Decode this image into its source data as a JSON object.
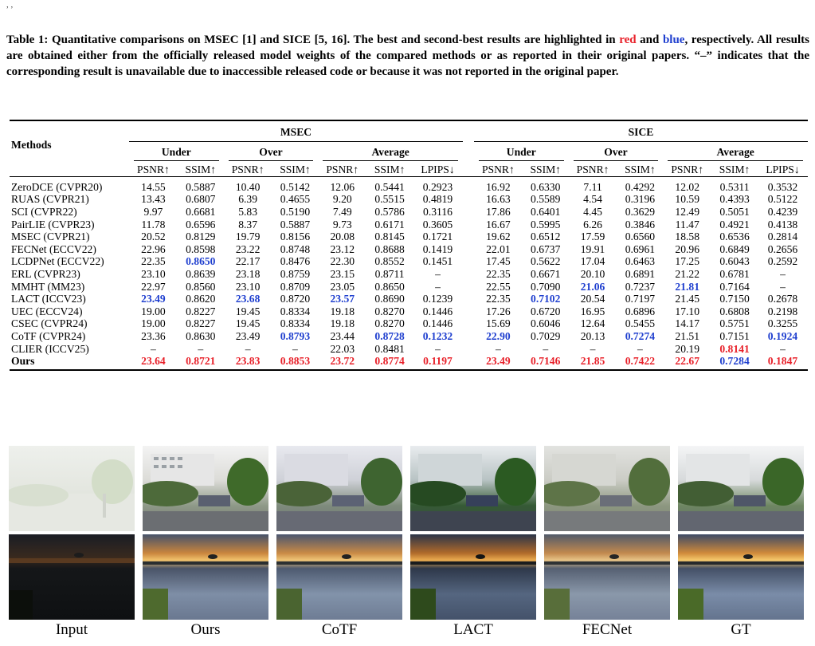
{
  "header_mark": ", ,",
  "caption": {
    "part1": "Table 1: Quantitative comparisons on MSEC [1] and SICE [5, 16]. The best and second-best results are highlighted in ",
    "red": "red",
    "part2": " and ",
    "blue": "blue",
    "part3": ", respectively. All results are obtained either from the officially released model weights of the compared methods or as reported in their original papers. “–” indicates that the corresponding result is unavailable due to inaccessible released code or because it was not reported in the original paper."
  },
  "table": {
    "methods_header": "Methods",
    "groups": [
      "MSEC",
      "SICE"
    ],
    "subgroups": [
      "Under",
      "Over",
      "Average",
      "Under",
      "Over",
      "Average"
    ],
    "metrics": [
      "PSNR↑",
      "SSIM↑",
      "PSNR↑",
      "SSIM↑",
      "PSNR↑",
      "SSIM↑",
      "LPIPS↓",
      "PSNR↑",
      "SSIM↑",
      "PSNR↑",
      "SSIM↑",
      "PSNR↑",
      "SSIM↑",
      "LPIPS↓"
    ],
    "rows": [
      {
        "method": "ZeroDCE (CVPR20)",
        "values": [
          "14.55",
          "0.5887",
          "10.40",
          "0.5142",
          "12.06",
          "0.5441",
          "0.2923",
          "16.92",
          "0.6330",
          "7.11",
          "0.4292",
          "12.02",
          "0.5311",
          "0.3532"
        ]
      },
      {
        "method": "RUAS (CVPR21)",
        "values": [
          "13.43",
          "0.6807",
          "6.39",
          "0.4655",
          "9.20",
          "0.5515",
          "0.4819",
          "16.63",
          "0.5589",
          "4.54",
          "0.3196",
          "10.59",
          "0.4393",
          "0.5122"
        ]
      },
      {
        "method": "SCI (CVPR22)",
        "values": [
          "9.97",
          "0.6681",
          "5.83",
          "0.5190",
          "7.49",
          "0.5786",
          "0.3116",
          "17.86",
          "0.6401",
          "4.45",
          "0.3629",
          "12.49",
          "0.5051",
          "0.4239"
        ]
      },
      {
        "method": "PairLIE (CVPR23)",
        "values": [
          "11.78",
          "0.6596",
          "8.37",
          "0.5887",
          "9.73",
          "0.6171",
          "0.3605",
          "16.67",
          "0.5995",
          "6.26",
          "0.3846",
          "11.47",
          "0.4921",
          "0.4138"
        ]
      },
      {
        "method": "MSEC (CVPR21)",
        "values": [
          "20.52",
          "0.8129",
          "19.79",
          "0.8156",
          "20.08",
          "0.8145",
          "0.1721",
          "19.62",
          "0.6512",
          "17.59",
          "0.6560",
          "18.58",
          "0.6536",
          "0.2814"
        ]
      },
      {
        "method": "FECNet (ECCV22)",
        "values": [
          "22.96",
          "0.8598",
          "23.22",
          "0.8748",
          "23.12",
          "0.8688",
          "0.1419",
          "22.01",
          "0.6737",
          "19.91",
          "0.6961",
          "20.96",
          "0.6849",
          "0.2656"
        ]
      },
      {
        "method": "LCDPNet (ECCV22)",
        "values": [
          "22.35",
          "0.8650",
          "22.17",
          "0.8476",
          "22.30",
          "0.8552",
          "0.1451",
          "17.45",
          "0.5622",
          "17.04",
          "0.6463",
          "17.25",
          "0.6043",
          "0.2592"
        ]
      },
      {
        "method": "ERL (CVPR23)",
        "values": [
          "23.10",
          "0.8639",
          "23.18",
          "0.8759",
          "23.15",
          "0.8711",
          "–",
          "22.35",
          "0.6671",
          "20.10",
          "0.6891",
          "21.22",
          "0.6781",
          "–"
        ]
      },
      {
        "method": "MMHT (MM23)",
        "values": [
          "22.97",
          "0.8560",
          "23.10",
          "0.8709",
          "23.05",
          "0.8650",
          "–",
          "22.55",
          "0.7090",
          "21.06",
          "0.7237",
          "21.81",
          "0.7164",
          "–"
        ]
      },
      {
        "method": "LACT (ICCV23)",
        "values": [
          "23.49",
          "0.8620",
          "23.68",
          "0.8720",
          "23.57",
          "0.8690",
          "0.1239",
          "22.35",
          "0.7102",
          "20.54",
          "0.7197",
          "21.45",
          "0.7150",
          "0.2678"
        ]
      },
      {
        "method": "UEC (ECCV24)",
        "values": [
          "19.00",
          "0.8227",
          "19.45",
          "0.8334",
          "19.18",
          "0.8270",
          "0.1446",
          "17.26",
          "0.6720",
          "16.95",
          "0.6896",
          "17.10",
          "0.6808",
          "0.2198"
        ]
      },
      {
        "method": "CSEC (CVPR24)",
        "values": [
          "19.00",
          "0.8227",
          "19.45",
          "0.8334",
          "19.18",
          "0.8270",
          "0.1446",
          "15.69",
          "0.6046",
          "12.64",
          "0.5455",
          "14.17",
          "0.5751",
          "0.3255"
        ]
      },
      {
        "method": "CoTF (CVPR24)",
        "values": [
          "23.36",
          "0.8630",
          "23.49",
          "0.8793",
          "23.44",
          "0.8728",
          "0.1232",
          "22.90",
          "0.7029",
          "20.13",
          "0.7274",
          "21.51",
          "0.7151",
          "0.1924"
        ]
      },
      {
        "method": "CLIER (ICCV25)",
        "values": [
          "–",
          "–",
          "–",
          "–",
          "22.03",
          "0.8481",
          "–",
          "–",
          "–",
          "–",
          "–",
          "20.19",
          "0.8141",
          "–"
        ]
      },
      {
        "method": "Ours",
        "values": [
          "23.64",
          "0.8721",
          "23.83",
          "0.8853",
          "23.72",
          "0.8774",
          "0.1197",
          "23.49",
          "0.7146",
          "21.85",
          "0.7422",
          "22.67",
          "0.7284",
          "0.1847"
        ]
      }
    ],
    "highlight": {
      "LCDPNet (ECCV22)": {
        "1": "second"
      },
      "MMHT (MM23)": {
        "9": "second",
        "11": "second"
      },
      "LACT (ICCV23)": {
        "0": "second",
        "2": "second",
        "4": "second",
        "8": "second"
      },
      "CoTF (CVPR24)": {
        "3": "second",
        "5": "second",
        "6": "second",
        "7": "second",
        "10": "second",
        "13": "second"
      },
      "CLIER (ICCV25)": {
        "12": "best"
      },
      "Ours": {
        "0": "best",
        "1": "best",
        "2": "best",
        "3": "best",
        "4": "best",
        "5": "best",
        "6": "best",
        "7": "best",
        "8": "best",
        "9": "best",
        "10": "best",
        "11": "best",
        "12": "second",
        "13": "best"
      }
    },
    "bold_method": "Ours"
  },
  "gallery": {
    "labels": [
      "Input",
      "Ours",
      "CoTF",
      "LACT",
      "FECNet",
      "GT"
    ]
  }
}
